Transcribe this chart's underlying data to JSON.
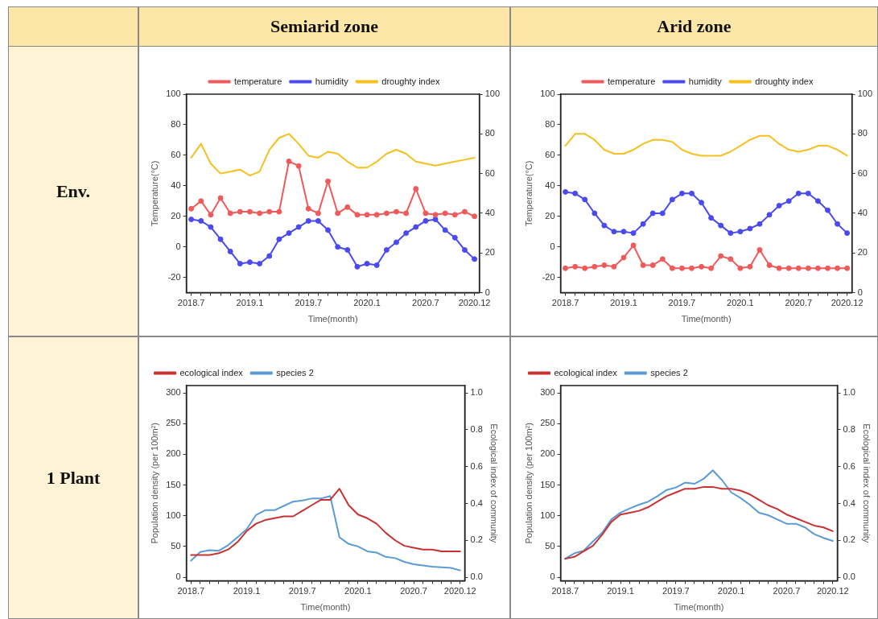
{
  "chart_data": [
    {
      "type": "other",
      "annotations": [
        "Semiarid zone",
        "Arid zone",
        "Env.",
        "1 Plant"
      ]
    },
    {
      "type": "line",
      "xlabel": "Time(month)",
      "ylabel": "Temperature(°C)",
      "categories": [
        "2018.7",
        null,
        null,
        null,
        null,
        null,
        "2019.1",
        null,
        null,
        null,
        null,
        null,
        "2019.7",
        null,
        null,
        null,
        null,
        null,
        "2020.1",
        null,
        null,
        null,
        null,
        null,
        "2020.7",
        null,
        null,
        null,
        null,
        "2020.12"
      ],
      "ylim": [
        -30,
        100
      ],
      "yticks": [
        -20,
        0,
        20,
        40,
        60,
        80,
        100
      ],
      "y2lim": [
        0,
        100
      ],
      "y2ticks": [
        0,
        20,
        40,
        60,
        80,
        100
      ],
      "legend": "top",
      "series": [
        {
          "name": "temperature",
          "color": "#f05a5a",
          "marker": "circle",
          "values": [
            25,
            30,
            21,
            32,
            22,
            23,
            23,
            22,
            23,
            23,
            56,
            53,
            25,
            22,
            43,
            22,
            26,
            21,
            21,
            21,
            22,
            23,
            22,
            38,
            22,
            21,
            22,
            21,
            23,
            20
          ]
        },
        {
          "name": "humidity",
          "color": "#4a4af0",
          "marker": "circle",
          "values": [
            18,
            17,
            13,
            5,
            -3,
            -11,
            -10,
            -11,
            -6,
            5,
            9,
            13,
            17,
            17,
            11,
            0,
            -2,
            -13,
            -11,
            -12,
            -2,
            3,
            9,
            13,
            17,
            18,
            11,
            6,
            -2,
            -8
          ]
        },
        {
          "name": "droughty index",
          "color": "#f5c020",
          "marker": "none",
          "axis": "y2",
          "values": [
            68,
            75,
            65,
            60,
            61,
            62,
            59,
            61,
            72,
            78,
            80,
            75,
            69,
            68,
            71,
            70,
            66,
            63,
            63,
            66,
            70,
            72,
            70,
            66,
            65,
            64,
            65,
            66,
            67,
            68
          ]
        }
      ]
    },
    {
      "type": "line",
      "xlabel": "Time(month)",
      "ylabel": "Temperature(°C)",
      "categories": [
        "2018.7",
        null,
        null,
        null,
        null,
        null,
        "2019.1",
        null,
        null,
        null,
        null,
        null,
        "2019.7",
        null,
        null,
        null,
        null,
        null,
        "2020.1",
        null,
        null,
        null,
        null,
        null,
        "2020.7",
        null,
        null,
        null,
        null,
        "2020.12"
      ],
      "ylim": [
        -30,
        100
      ],
      "yticks": [
        -20,
        0,
        20,
        40,
        60,
        80,
        100
      ],
      "y2lim": [
        0,
        100
      ],
      "y2ticks": [
        0,
        20,
        40,
        60,
        80,
        100
      ],
      "legend": "top",
      "series": [
        {
          "name": "temperature",
          "color": "#f05a5a",
          "marker": "circle",
          "values": [
            -14,
            -13,
            -14,
            -13,
            -12,
            -13,
            -7,
            1,
            -12,
            -12,
            -8,
            -14,
            -14,
            -14,
            -13,
            -14,
            -6,
            -8,
            -14,
            -13,
            -2,
            -12,
            -14,
            -14,
            -14,
            -14,
            -14,
            -14,
            -14,
            -14
          ]
        },
        {
          "name": "humidity",
          "color": "#4a4af0",
          "marker": "circle",
          "values": [
            36,
            35,
            31,
            22,
            14,
            10,
            10,
            9,
            15,
            22,
            22,
            31,
            35,
            35,
            29,
            19,
            14,
            9,
            10,
            12,
            15,
            21,
            27,
            30,
            35,
            35,
            30,
            24,
            15,
            9
          ]
        },
        {
          "name": "droughty index",
          "color": "#f5c020",
          "marker": "none",
          "axis": "y2",
          "values": [
            74,
            80,
            80,
            77,
            72,
            70,
            70,
            72,
            75,
            77,
            77,
            76,
            72,
            70,
            69,
            69,
            69,
            71,
            74,
            77,
            79,
            79,
            75,
            72,
            71,
            72,
            74,
            74,
            72,
            69
          ]
        }
      ]
    },
    {
      "type": "line",
      "xlabel": "Time(month)",
      "ylabel": "Population density (per 100m²)",
      "y2label": "Ecological index of community",
      "categories": [
        "2018.7",
        null,
        null,
        null,
        null,
        null,
        "2019.1",
        null,
        null,
        null,
        null,
        null,
        "2019.7",
        null,
        null,
        null,
        null,
        null,
        "2020.1",
        null,
        null,
        null,
        null,
        null,
        "2020.7",
        null,
        null,
        null,
        null,
        "2020.12"
      ],
      "ylim": [
        -6,
        312
      ],
      "yticks": [
        0,
        50,
        100,
        150,
        200,
        250,
        300
      ],
      "y2lim": [
        -0.02,
        1.04
      ],
      "y2ticks": [
        {
          "value": 0,
          "label": "0.0"
        },
        {
          "value": 0.2,
          "label": "0.2"
        },
        {
          "value": 0.4,
          "label": "0.4"
        },
        {
          "value": 0.6,
          "label": "0.6"
        },
        {
          "value": 0.8,
          "label": "0.8"
        },
        {
          "value": 1,
          "label": "1.0"
        }
      ],
      "legend": "top left",
      "series": [
        {
          "name": "ecological index",
          "color": "#c83232",
          "axis": "y2",
          "values": [
            0.12,
            0.12,
            0.12,
            0.13,
            0.15,
            0.19,
            0.25,
            0.29,
            0.31,
            0.32,
            0.33,
            0.33,
            0.36,
            0.39,
            0.42,
            0.42,
            0.48,
            0.39,
            0.34,
            0.32,
            0.29,
            0.24,
            0.2,
            0.17,
            0.16,
            0.15,
            0.15,
            0.14,
            0.14,
            0.14
          ]
        },
        {
          "name": "species 2",
          "color": "#5b9bd5",
          "values": [
            27,
            41,
            44,
            43,
            52,
            65,
            78,
            101,
            109,
            109,
            116,
            123,
            125,
            128,
            128,
            132,
            65,
            54,
            50,
            42,
            40,
            33,
            31,
            25,
            21,
            19,
            17,
            16,
            15,
            11
          ]
        }
      ]
    },
    {
      "type": "line",
      "xlabel": "Time(month)",
      "ylabel": "Population density (per 100m²)",
      "y2label": "Ecological index of community",
      "categories": [
        "2018.7",
        null,
        null,
        null,
        null,
        null,
        "2019.1",
        null,
        null,
        null,
        null,
        null,
        "2019.7",
        null,
        null,
        null,
        null,
        null,
        "2020.1",
        null,
        null,
        null,
        null,
        null,
        "2020.7",
        null,
        null,
        null,
        null,
        "2020.12"
      ],
      "ylim": [
        -6,
        312
      ],
      "yticks": [
        0,
        50,
        100,
        150,
        200,
        250,
        300
      ],
      "y2lim": [
        -0.02,
        1.04
      ],
      "y2ticks": [
        {
          "value": 0,
          "label": "0.0"
        },
        {
          "value": 0.2,
          "label": "0.2"
        },
        {
          "value": 0.4,
          "label": "0.4"
        },
        {
          "value": 0.6,
          "label": "0.6"
        },
        {
          "value": 0.8,
          "label": "0.8"
        },
        {
          "value": 1,
          "label": "1.0"
        }
      ],
      "legend": "top left",
      "series": [
        {
          "name": "ecological index",
          "color": "#c83232",
          "axis": "y2",
          "values": [
            0.1,
            0.11,
            0.14,
            0.17,
            0.23,
            0.3,
            0.34,
            0.35,
            0.36,
            0.38,
            0.41,
            0.44,
            0.46,
            0.48,
            0.48,
            0.49,
            0.49,
            0.48,
            0.48,
            0.47,
            0.45,
            0.42,
            0.39,
            0.37,
            0.34,
            0.32,
            0.3,
            0.28,
            0.27,
            0.25
          ]
        },
        {
          "name": "species 2",
          "color": "#5b9bd5",
          "values": [
            30,
            39,
            43,
            58,
            72,
            94,
            105,
            112,
            118,
            123,
            132,
            142,
            146,
            154,
            152,
            160,
            174,
            158,
            138,
            129,
            118,
            105,
            101,
            94,
            87,
            87,
            81,
            70,
            64,
            59
          ]
        }
      ]
    }
  ]
}
